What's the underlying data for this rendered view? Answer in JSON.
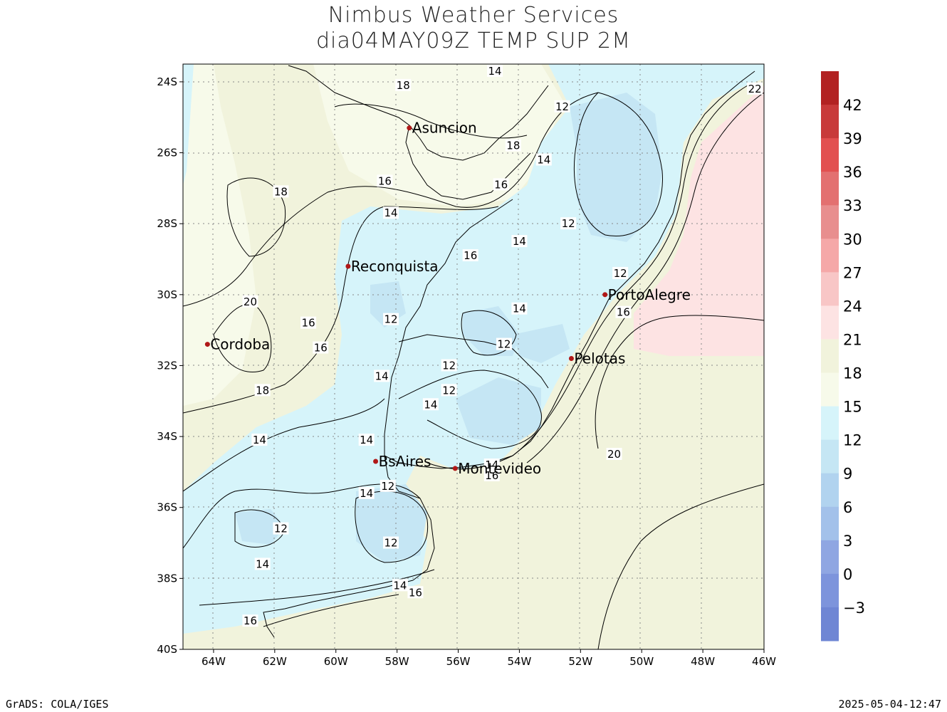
{
  "title": {
    "line1": "Nimbus Weather Services",
    "line2": "dia04MAY09Z TEMP SUP 2M"
  },
  "footer": {
    "left": "GrADS: COLA/IGES",
    "right": "2025-05-04-12:47"
  },
  "axes": {
    "lat_labels": [
      "24S",
      "26S",
      "28S",
      "30S",
      "32S",
      "34S",
      "36S",
      "38S",
      "40S"
    ],
    "lon_labels": [
      "64W",
      "62W",
      "60W",
      "58W",
      "56W",
      "54W",
      "52W",
      "50W",
      "48W",
      "46W"
    ]
  },
  "colorbar": {
    "labels": [
      "42",
      "39",
      "36",
      "33",
      "30",
      "27",
      "24",
      "21",
      "18",
      "15",
      "12",
      "9",
      "6",
      "3",
      "0",
      "−3"
    ],
    "colors": [
      "#b22222",
      "#c83a3a",
      "#e25050",
      "#e37070",
      "#e88e8e",
      "#f5a8a8",
      "#f8c6c6",
      "#fde3e3",
      "#f1f3dc",
      "#f7faea",
      "#d6f4fa",
      "#c5e6f4",
      "#b1d3ef",
      "#a3c1ea",
      "#8fa6e2",
      "#7d94dc",
      "#6f86d4"
    ]
  },
  "cities": [
    {
      "name": "Asuncion",
      "lon": -57.6,
      "lat": -25.3
    },
    {
      "name": "Reconquista",
      "lon": -59.6,
      "lat": -29.2
    },
    {
      "name": "Cordoba",
      "lon": -64.2,
      "lat": -31.4
    },
    {
      "name": "PortoAlegre",
      "lon": -51.2,
      "lat": -30.0
    },
    {
      "name": "Pelotas",
      "lon": -52.3,
      "lat": -31.8
    },
    {
      "name": "BsAires",
      "lon": -58.7,
      "lat": -34.7
    },
    {
      "name": "Montevideo",
      "lon": -56.1,
      "lat": -34.9
    }
  ],
  "contour_labels": [
    {
      "text": "14",
      "lon": -54.8,
      "lat": -23.7
    },
    {
      "text": "18",
      "lon": -57.8,
      "lat": -24.1
    },
    {
      "text": "12",
      "lon": -52.6,
      "lat": -24.7
    },
    {
      "text": "18",
      "lon": -54.2,
      "lat": -25.8
    },
    {
      "text": "14",
      "lon": -53.2,
      "lat": -26.2
    },
    {
      "text": "16",
      "lon": -58.4,
      "lat": -26.8
    },
    {
      "text": "16",
      "lon": -54.6,
      "lat": -26.9
    },
    {
      "text": "18",
      "lon": -61.8,
      "lat": -27.1
    },
    {
      "text": "14",
      "lon": -58.2,
      "lat": -27.7
    },
    {
      "text": "12",
      "lon": -52.4,
      "lat": -28.0
    },
    {
      "text": "14",
      "lon": -54.0,
      "lat": -28.5
    },
    {
      "text": "16",
      "lon": -55.6,
      "lat": -28.9
    },
    {
      "text": "12",
      "lon": -50.7,
      "lat": -29.4
    },
    {
      "text": "20",
      "lon": -62.8,
      "lat": -30.2
    },
    {
      "text": "14",
      "lon": -54.0,
      "lat": -30.4
    },
    {
      "text": "16",
      "lon": -50.6,
      "lat": -30.5
    },
    {
      "text": "16",
      "lon": -60.9,
      "lat": -30.8
    },
    {
      "text": "12",
      "lon": -58.2,
      "lat": -30.7
    },
    {
      "text": "16",
      "lon": -60.5,
      "lat": -31.5
    },
    {
      "text": "12",
      "lon": -54.5,
      "lat": -31.4
    },
    {
      "text": "12",
      "lon": -56.3,
      "lat": -32.0
    },
    {
      "text": "14",
      "lon": -58.5,
      "lat": -32.3
    },
    {
      "text": "12",
      "lon": -56.3,
      "lat": -32.7
    },
    {
      "text": "18",
      "lon": -62.4,
      "lat": -32.7
    },
    {
      "text": "14",
      "lon": -56.9,
      "lat": -33.1
    },
    {
      "text": "14",
      "lon": -62.5,
      "lat": -34.1
    },
    {
      "text": "14",
      "lon": -59.0,
      "lat": -34.1
    },
    {
      "text": "20",
      "lon": -50.9,
      "lat": -34.5
    },
    {
      "text": "14",
      "lon": -54.9,
      "lat": -34.8
    },
    {
      "text": "16",
      "lon": -54.9,
      "lat": -35.1
    },
    {
      "text": "12",
      "lon": -58.3,
      "lat": -35.4
    },
    {
      "text": "14",
      "lon": -59.0,
      "lat": -35.6
    },
    {
      "text": "12",
      "lon": -61.8,
      "lat": -36.6
    },
    {
      "text": "12",
      "lon": -58.2,
      "lat": -37.0
    },
    {
      "text": "14",
      "lon": -62.4,
      "lat": -37.6
    },
    {
      "text": "14",
      "lon": -57.9,
      "lat": -38.2
    },
    {
      "text": "16",
      "lon": -57.4,
      "lat": -38.4
    },
    {
      "text": "16",
      "lon": -62.8,
      "lat": -39.2
    },
    {
      "text": "22",
      "lon": -46.3,
      "lat": -24.2
    }
  ]
}
